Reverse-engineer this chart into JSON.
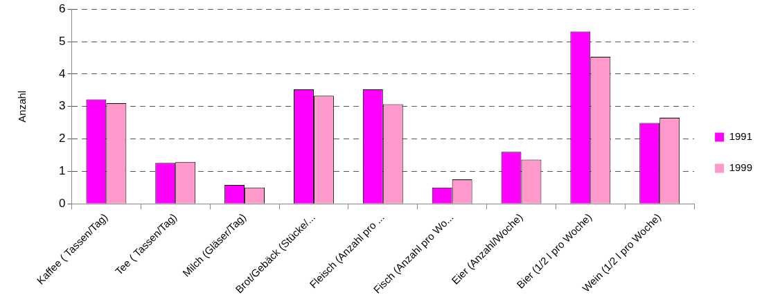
{
  "chart_data": {
    "type": "bar",
    "ylabel": "Anzahl",
    "categories": [
      "Kaffee ( Tassen/Tag)",
      "Tee ( Tassen/Tag)",
      "Milch (Gläser/Tag)",
      "Brot/Gebäck (Stücke/...",
      "Fleisch (Anzahl pro ...",
      "Fisch (Anzahl pro Wo...",
      "Eier (Anzahl/Woche)",
      "Bier (1/2 l pro Woche)",
      "Wein (1/2 l pro Woche)"
    ],
    "series": [
      {
        "name": "1991",
        "color": "#ff00ff",
        "values": [
          3.22,
          1.26,
          0.58,
          3.53,
          3.53,
          0.5,
          1.6,
          5.31,
          2.49
        ]
      },
      {
        "name": "1999",
        "color": "#ff99cc",
        "values": [
          3.1,
          1.29,
          0.5,
          3.33,
          3.07,
          0.75,
          1.36,
          4.53,
          2.65
        ]
      }
    ],
    "ylim": [
      0,
      6
    ],
    "yticks": [
      0,
      1,
      2,
      3,
      4,
      5,
      6
    ],
    "grid": "y",
    "legend": "right"
  }
}
